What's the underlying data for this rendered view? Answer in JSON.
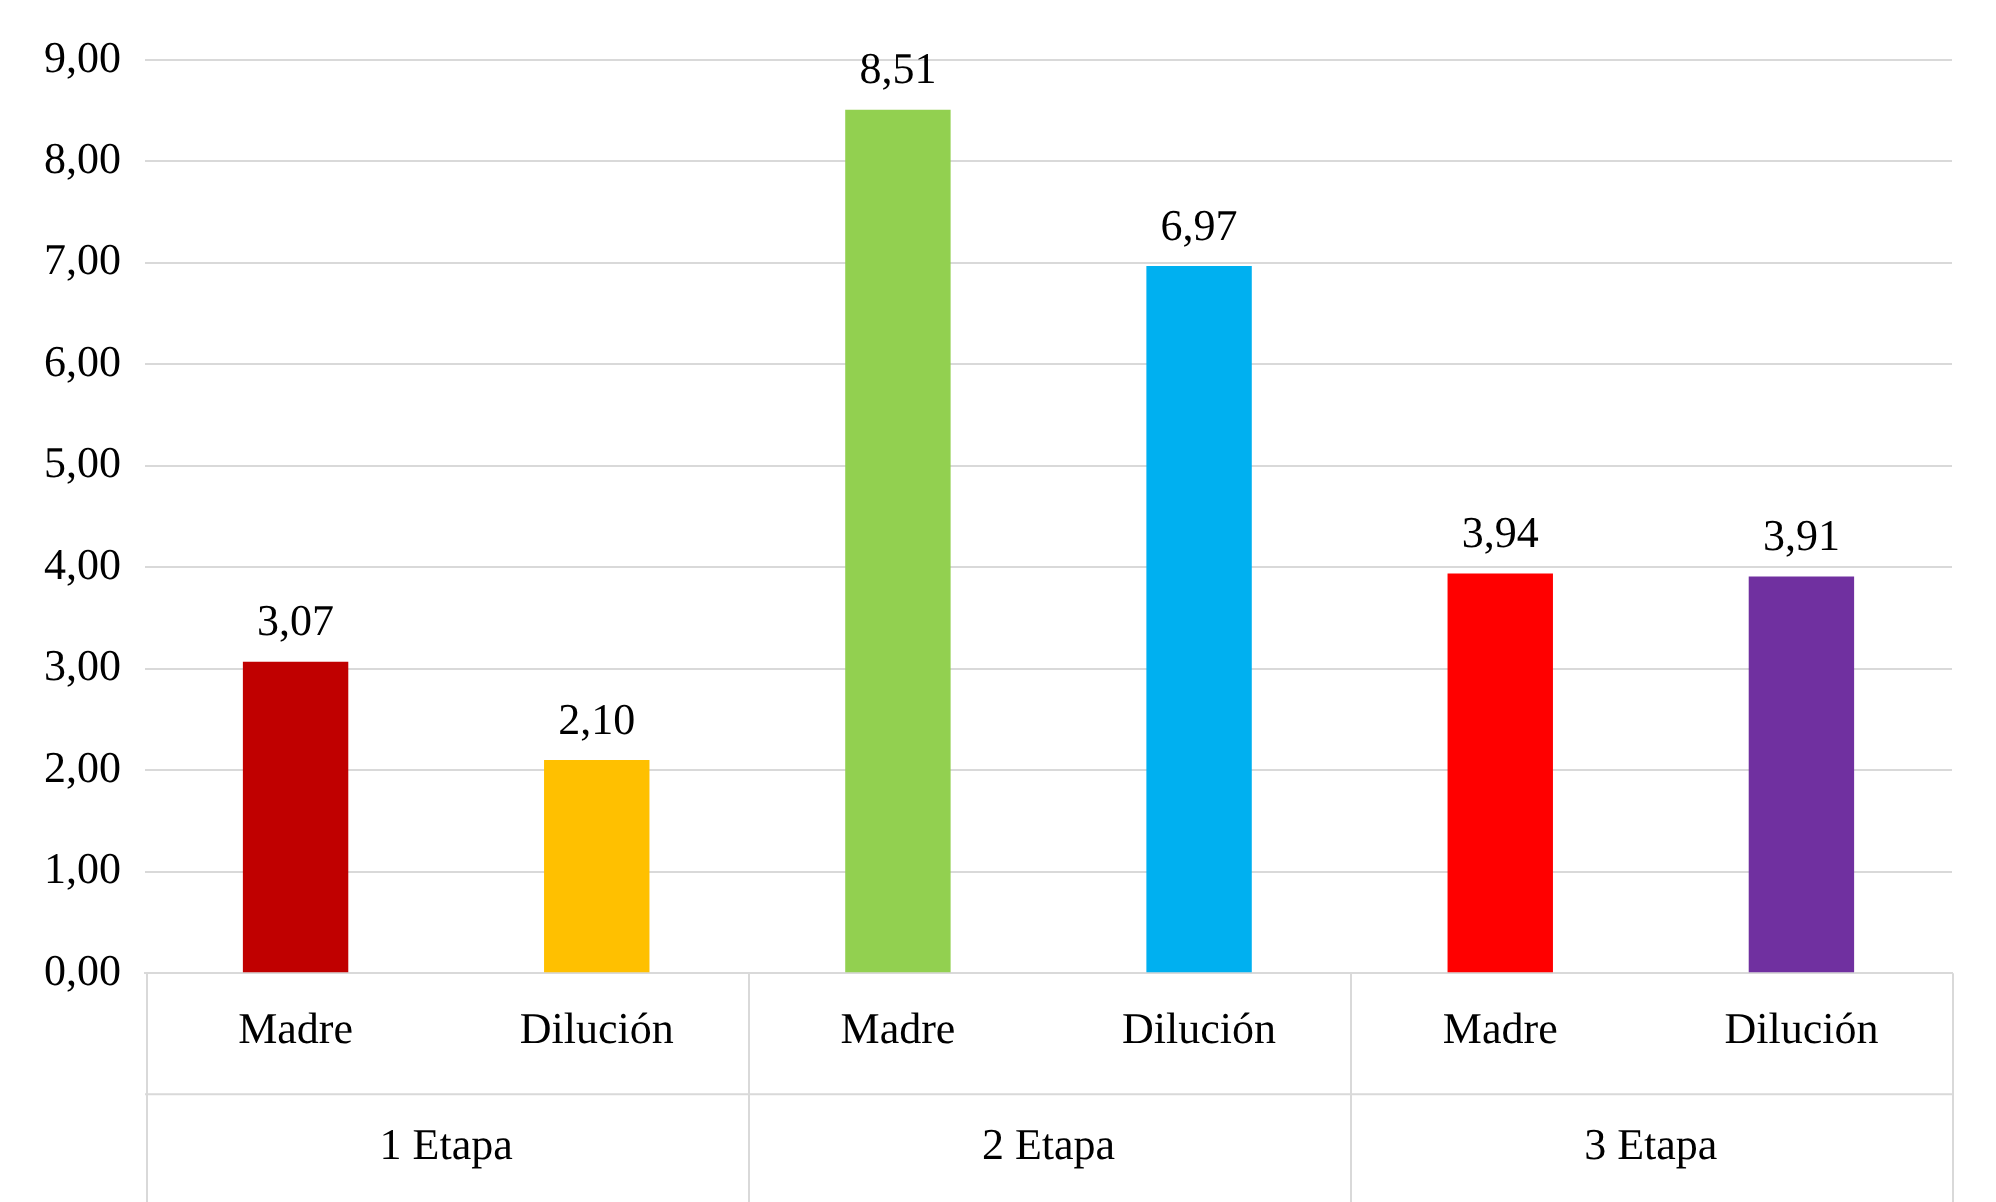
{
  "chart_data": {
    "type": "bar",
    "categories": [
      "Madre",
      "Dilución",
      "Madre",
      "Dilución",
      "Madre",
      "Dilución"
    ],
    "values": [
      3.07,
      2.1,
      8.51,
      6.97,
      3.94,
      3.91
    ],
    "colors": [
      "#c00000",
      "#ffc000",
      "#92d050",
      "#00b0f0",
      "#ff0000",
      "#7030a0"
    ],
    "value_labels": [
      "3,07",
      "2,10",
      "8,51",
      "6,97",
      "3,94",
      "3,91"
    ],
    "annotations": [
      "1 Etapa",
      "2 Etapa",
      "3 Etapa"
    ],
    "ylim": [
      0,
      9
    ],
    "yticks": [
      {
        "value": 0,
        "label": "0,00"
      },
      {
        "value": 1,
        "label": "1,00"
      },
      {
        "value": 2,
        "label": "2,00"
      },
      {
        "value": 3,
        "label": "3,00"
      },
      {
        "value": 4,
        "label": "4,00"
      },
      {
        "value": 5,
        "label": "5,00"
      },
      {
        "value": 6,
        "label": "6,00"
      },
      {
        "value": 7,
        "label": "7,00"
      },
      {
        "value": 8,
        "label": "8,00"
      },
      {
        "value": 9,
        "label": "9,00"
      }
    ],
    "grid": "y",
    "legend": false
  }
}
